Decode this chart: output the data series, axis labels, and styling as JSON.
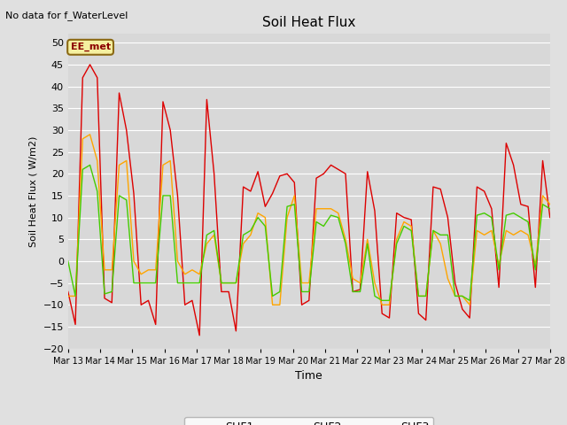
{
  "title": "Soil Heat Flux",
  "subtitle": "No data for f_WaterLevel",
  "station_label": "EE_met",
  "ylabel": "Soil Heat Flux ( W/m2)",
  "xlabel": "Time",
  "ylim": [
    -20,
    52
  ],
  "yticks": [
    -20,
    -15,
    -10,
    -5,
    0,
    5,
    10,
    15,
    20,
    25,
    30,
    35,
    40,
    45,
    50
  ],
  "background_color": "#e0e0e0",
  "plot_bg_color": "#d8d8d8",
  "grid_color": "#ffffff",
  "line_colors": {
    "SHF1": "#dd0000",
    "SHF2": "#ffa500",
    "SHF3": "#44cc00"
  },
  "x_dates": [
    "Mar 13",
    "Mar 14",
    "Mar 15",
    "Mar 16",
    "Mar 17",
    "Mar 18",
    "Mar 19",
    "Mar 20",
    "Mar 21",
    "Mar 22",
    "Mar 23",
    "Mar 24",
    "Mar 25",
    "Mar 26",
    "Mar 27",
    "Mar 28"
  ],
  "SHF1": [
    -7,
    -14.5,
    42,
    45,
    42,
    -8.5,
    -9.5,
    38.5,
    30,
    15.5,
    -10,
    -9,
    -14.5,
    36.5,
    30,
    15,
    -10,
    -9,
    -17,
    37,
    20,
    -7,
    -7,
    -16,
    17,
    16,
    20.5,
    12.5,
    15.5,
    19.5,
    20,
    18,
    -10,
    -9,
    19,
    20,
    22,
    21,
    20,
    -7,
    -6.5,
    20.5,
    11.5,
    -12,
    -13,
    11,
    10,
    9.5,
    -12,
    -13.5,
    17,
    16.5,
    10,
    -5,
    -11,
    -13,
    17,
    16,
    12,
    -6,
    27,
    22,
    13,
    12.5,
    -6,
    23,
    10
  ],
  "SHF2": [
    -8,
    -8,
    28,
    29,
    23,
    -2,
    -2,
    22,
    23,
    0,
    -3,
    -2,
    -2,
    22,
    23,
    0,
    -3,
    -2,
    -3,
    4,
    6,
    -5,
    -5,
    -5,
    4,
    6,
    11,
    10,
    -10,
    -10,
    10,
    15,
    -5,
    -5,
    12,
    12,
    12,
    11,
    5,
    -4,
    -5,
    5,
    -5,
    -10,
    -10,
    5,
    9,
    8,
    -8,
    -8,
    7,
    4,
    -4,
    -8,
    -8,
    -10,
    7,
    6,
    7,
    -1,
    7,
    6,
    7,
    6,
    -1,
    15,
    13
  ],
  "SHF3": [
    0,
    -8,
    21,
    22,
    16,
    -7.5,
    -7,
    15,
    14,
    -5,
    -5,
    -5,
    -5,
    15,
    15,
    -5,
    -5,
    -5,
    -5,
    6,
    7,
    -5,
    -5,
    -5,
    6,
    7,
    10,
    8,
    -8,
    -7,
    12.5,
    13,
    -7,
    -7,
    9,
    8,
    10.5,
    10,
    4,
    -7,
    -7,
    4,
    -8,
    -9,
    -9,
    4,
    8,
    7,
    -8,
    -8,
    7,
    6,
    6,
    -8,
    -8,
    -9,
    10.5,
    11,
    10,
    -2,
    10.5,
    11,
    10,
    9,
    -2,
    13,
    12
  ]
}
